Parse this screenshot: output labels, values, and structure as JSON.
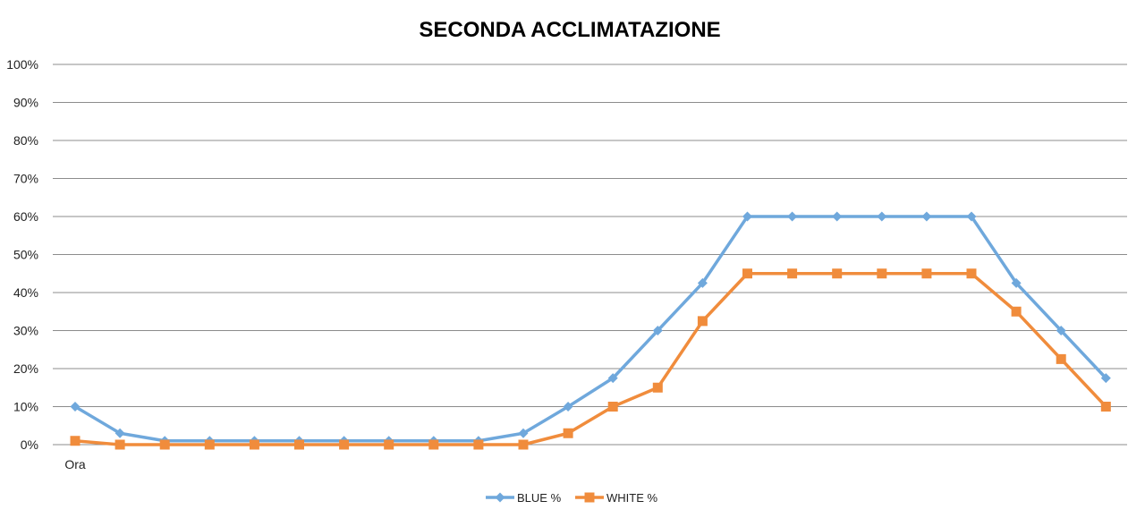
{
  "chart_data": {
    "type": "line",
    "title": "SECONDA ACCLIMATAZIONE",
    "xlabel": "",
    "ylabel": "",
    "x_tick_labels": [
      "Ora"
    ],
    "y_tick_labels": [
      "100%",
      "90%",
      "80%",
      "70%",
      "60%",
      "50%",
      "40%",
      "30%",
      "20%",
      "10%",
      "0%"
    ],
    "ylim": [
      0,
      100
    ],
    "grid": true,
    "legend_position": "bottom",
    "series": [
      {
        "name": "BLUE %",
        "color": "#6fa8dc",
        "marker": "diamond",
        "values": [
          10,
          3,
          1,
          1,
          1,
          1,
          1,
          1,
          1,
          1,
          3,
          10,
          17.5,
          30,
          42.5,
          60,
          60,
          60,
          60,
          60,
          60,
          42.5,
          30,
          17.5
        ]
      },
      {
        "name": "WHITE %",
        "color": "#f08c3c",
        "marker": "square",
        "values": [
          1,
          0,
          0,
          0,
          0,
          0,
          0,
          0,
          0,
          0,
          0,
          3,
          10,
          15,
          32.5,
          45,
          45,
          45,
          45,
          45,
          45,
          35,
          22.5,
          10
        ]
      }
    ]
  }
}
